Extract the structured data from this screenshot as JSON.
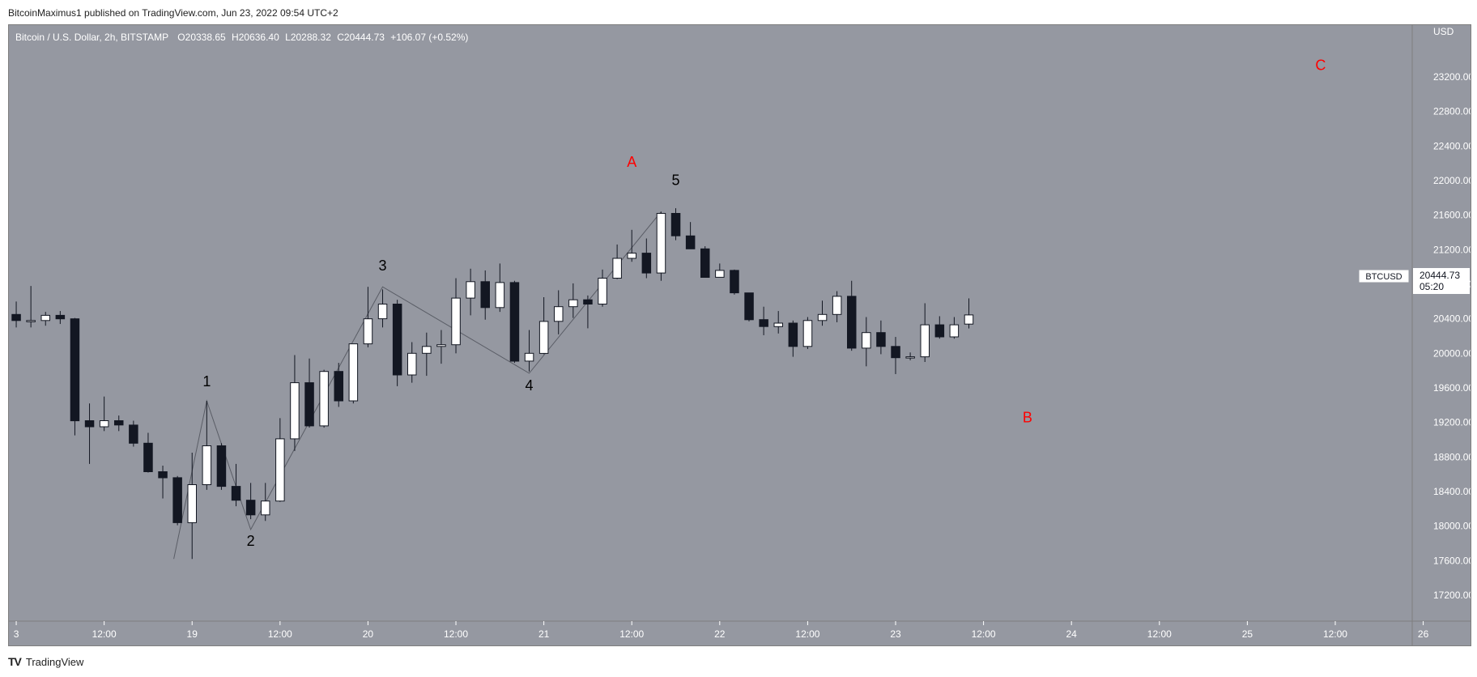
{
  "header": {
    "publisher_line": "BitcoinMaximus1 published on TradingView.com, Jun 23, 2022 09:54 UTC+2"
  },
  "footer": {
    "brand_icon": "TV",
    "brand_name": "TradingView"
  },
  "colors": {
    "background": "#9598a1",
    "candle_up": "#ffffff",
    "candle_down": "#131722",
    "wick": "#131722",
    "wave_line": "#5a5d66",
    "abc_label": "#ff0000",
    "axis_text": "#ffffff"
  },
  "chart_data": {
    "type": "candlestick",
    "title": "Bitcoin / U.S. Dollar, 2h, BITSTAMP",
    "ohlc_readout": {
      "o_label": "O",
      "o_value": "20338.65",
      "h_label": "H",
      "h_value": "20636.40",
      "l_label": "L",
      "l_value": "20288.32",
      "c_label": "C",
      "c_value": "20444.73",
      "change": "+106.07 (+0.52%)"
    },
    "y_axis": {
      "unit": "USD",
      "ylim": [
        16900,
        23800
      ],
      "ticks": [
        23200,
        22800,
        22400,
        22000,
        21600,
        21200,
        20800,
        20400,
        20000,
        19600,
        19200,
        18800,
        18400,
        18000,
        17600,
        17200
      ],
      "tick_labels": [
        "23200.00",
        "22800.00",
        "22400.00",
        "22000.00",
        "21600.00",
        "21200.00",
        "20800.00",
        "20400.00",
        "20000.00",
        "19600.00",
        "19200.00",
        "18800.00",
        "18400.00",
        "18000.00",
        "17600.00",
        "17200.00"
      ]
    },
    "x_axis": {
      "unit": "hours since Jun 18 00:00",
      "xlim": [
        23,
        214.5
      ],
      "ticks": [
        {
          "t": 24,
          "label": "3"
        },
        {
          "t": 36,
          "label": "12:00"
        },
        {
          "t": 48,
          "label": "19"
        },
        {
          "t": 60,
          "label": "12:00"
        },
        {
          "t": 72,
          "label": "20"
        },
        {
          "t": 84,
          "label": "12:00"
        },
        {
          "t": 96,
          "label": "21"
        },
        {
          "t": 108,
          "label": "12:00"
        },
        {
          "t": 120,
          "label": "22"
        },
        {
          "t": 132,
          "label": "12:00"
        },
        {
          "t": 144,
          "label": "23"
        },
        {
          "t": 156,
          "label": "12:00"
        },
        {
          "t": 168,
          "label": "24"
        },
        {
          "t": 180,
          "label": "12:00"
        },
        {
          "t": 192,
          "label": "25"
        },
        {
          "t": 204,
          "label": "12:00"
        },
        {
          "t": 216,
          "label": "26"
        }
      ]
    },
    "candles": [
      {
        "t": 24,
        "o": 20450,
        "h": 20600,
        "l": 20300,
        "c": 20380
      },
      {
        "t": 26,
        "o": 20380,
        "h": 20780,
        "l": 20300,
        "c": 20380
      },
      {
        "t": 28,
        "o": 20380,
        "h": 20480,
        "l": 20320,
        "c": 20440
      },
      {
        "t": 30,
        "o": 20440,
        "h": 20490,
        "l": 20340,
        "c": 20400
      },
      {
        "t": 32,
        "o": 20400,
        "h": 20410,
        "l": 19050,
        "c": 19220
      },
      {
        "t": 34,
        "o": 19220,
        "h": 19420,
        "l": 18720,
        "c": 19150
      },
      {
        "t": 36,
        "o": 19150,
        "h": 19500,
        "l": 19100,
        "c": 19220
      },
      {
        "t": 38,
        "o": 19220,
        "h": 19280,
        "l": 19100,
        "c": 19170
      },
      {
        "t": 40,
        "o": 19170,
        "h": 19220,
        "l": 18920,
        "c": 18960
      },
      {
        "t": 42,
        "o": 18960,
        "h": 19080,
        "l": 18620,
        "c": 18630
      },
      {
        "t": 44,
        "o": 18630,
        "h": 18700,
        "l": 18320,
        "c": 18560
      },
      {
        "t": 46,
        "o": 18560,
        "h": 18580,
        "l": 18010,
        "c": 18040
      },
      {
        "t": 48,
        "o": 18040,
        "h": 18850,
        "l": 17620,
        "c": 18480
      },
      {
        "t": 50,
        "o": 18480,
        "h": 19450,
        "l": 18420,
        "c": 18930
      },
      {
        "t": 52,
        "o": 18930,
        "h": 18960,
        "l": 18420,
        "c": 18460
      },
      {
        "t": 54,
        "o": 18460,
        "h": 18720,
        "l": 18230,
        "c": 18300
      },
      {
        "t": 56,
        "o": 18300,
        "h": 18500,
        "l": 18080,
        "c": 18130
      },
      {
        "t": 58,
        "o": 18130,
        "h": 18500,
        "l": 18060,
        "c": 18290
      },
      {
        "t": 60,
        "o": 18290,
        "h": 19250,
        "l": 18280,
        "c": 19010
      },
      {
        "t": 62,
        "o": 19010,
        "h": 19980,
        "l": 18870,
        "c": 19660
      },
      {
        "t": 64,
        "o": 19660,
        "h": 19940,
        "l": 19140,
        "c": 19160
      },
      {
        "t": 66,
        "o": 19160,
        "h": 19810,
        "l": 19140,
        "c": 19790
      },
      {
        "t": 68,
        "o": 19790,
        "h": 19890,
        "l": 19380,
        "c": 19450
      },
      {
        "t": 70,
        "o": 19450,
        "h": 20110,
        "l": 19420,
        "c": 20110
      },
      {
        "t": 72,
        "o": 20110,
        "h": 20770,
        "l": 20070,
        "c": 20400
      },
      {
        "t": 74,
        "o": 20400,
        "h": 20740,
        "l": 20300,
        "c": 20570
      },
      {
        "t": 76,
        "o": 20570,
        "h": 20620,
        "l": 19620,
        "c": 19750
      },
      {
        "t": 78,
        "o": 19750,
        "h": 20130,
        "l": 19660,
        "c": 20000
      },
      {
        "t": 80,
        "o": 20000,
        "h": 20240,
        "l": 19740,
        "c": 20080
      },
      {
        "t": 82,
        "o": 20080,
        "h": 20270,
        "l": 19880,
        "c": 20100
      },
      {
        "t": 84,
        "o": 20100,
        "h": 20870,
        "l": 20000,
        "c": 20640
      },
      {
        "t": 86,
        "o": 20640,
        "h": 20980,
        "l": 20440,
        "c": 20830
      },
      {
        "t": 88,
        "o": 20830,
        "h": 20960,
        "l": 20390,
        "c": 20530
      },
      {
        "t": 90,
        "o": 20530,
        "h": 21040,
        "l": 20480,
        "c": 20820
      },
      {
        "t": 92,
        "o": 20820,
        "h": 20840,
        "l": 19890,
        "c": 19910
      },
      {
        "t": 94,
        "o": 19910,
        "h": 20270,
        "l": 19790,
        "c": 20000
      },
      {
        "t": 96,
        "o": 20000,
        "h": 20650,
        "l": 19990,
        "c": 20370
      },
      {
        "t": 98,
        "o": 20370,
        "h": 20730,
        "l": 20220,
        "c": 20540
      },
      {
        "t": 100,
        "o": 20540,
        "h": 20810,
        "l": 20410,
        "c": 20620
      },
      {
        "t": 102,
        "o": 20620,
        "h": 20670,
        "l": 20290,
        "c": 20570
      },
      {
        "t": 104,
        "o": 20570,
        "h": 20970,
        "l": 20540,
        "c": 20870
      },
      {
        "t": 106,
        "o": 20870,
        "h": 21260,
        "l": 20860,
        "c": 21100
      },
      {
        "t": 108,
        "o": 21100,
        "h": 21430,
        "l": 21060,
        "c": 21160
      },
      {
        "t": 110,
        "o": 21160,
        "h": 21330,
        "l": 20870,
        "c": 20930
      },
      {
        "t": 112,
        "o": 20930,
        "h": 21640,
        "l": 20840,
        "c": 21620
      },
      {
        "t": 114,
        "o": 21620,
        "h": 21680,
        "l": 21310,
        "c": 21360
      },
      {
        "t": 116,
        "o": 21360,
        "h": 21520,
        "l": 21210,
        "c": 21210
      },
      {
        "t": 118,
        "o": 21210,
        "h": 21240,
        "l": 20880,
        "c": 20880
      },
      {
        "t": 120,
        "o": 20880,
        "h": 21040,
        "l": 20880,
        "c": 20960
      },
      {
        "t": 122,
        "o": 20960,
        "h": 20970,
        "l": 20680,
        "c": 20700
      },
      {
        "t": 124,
        "o": 20700,
        "h": 20700,
        "l": 20370,
        "c": 20390
      },
      {
        "t": 126,
        "o": 20390,
        "h": 20540,
        "l": 20210,
        "c": 20310
      },
      {
        "t": 128,
        "o": 20310,
        "h": 20490,
        "l": 20230,
        "c": 20350
      },
      {
        "t": 130,
        "o": 20350,
        "h": 20380,
        "l": 19960,
        "c": 20080
      },
      {
        "t": 132,
        "o": 20080,
        "h": 20420,
        "l": 20050,
        "c": 20380
      },
      {
        "t": 134,
        "o": 20380,
        "h": 20610,
        "l": 20320,
        "c": 20450
      },
      {
        "t": 136,
        "o": 20450,
        "h": 20720,
        "l": 20360,
        "c": 20660
      },
      {
        "t": 138,
        "o": 20660,
        "h": 20840,
        "l": 20030,
        "c": 20060
      },
      {
        "t": 140,
        "o": 20060,
        "h": 20420,
        "l": 19850,
        "c": 20240
      },
      {
        "t": 142,
        "o": 20240,
        "h": 20380,
        "l": 19990,
        "c": 20080
      },
      {
        "t": 144,
        "o": 20080,
        "h": 20190,
        "l": 19760,
        "c": 19950
      },
      {
        "t": 146,
        "o": 19950,
        "h": 20010,
        "l": 19920,
        "c": 19960
      },
      {
        "t": 148,
        "o": 19960,
        "h": 20580,
        "l": 19900,
        "c": 20330
      },
      {
        "t": 150,
        "o": 20330,
        "h": 20430,
        "l": 20170,
        "c": 20190
      },
      {
        "t": 152,
        "o": 20190,
        "h": 20420,
        "l": 20170,
        "c": 20330
      },
      {
        "t": 154,
        "o": 20338.65,
        "h": 20636.4,
        "l": 20288.32,
        "c": 20444.73
      }
    ],
    "elliott_wave": {
      "path": [
        {
          "t": 45.5,
          "p": 17620
        },
        {
          "t": 50,
          "p": 19450
        },
        {
          "t": 56,
          "p": 17960
        },
        {
          "t": 74,
          "p": 20770
        },
        {
          "t": 94,
          "p": 19770
        },
        {
          "t": 112,
          "p": 21640
        }
      ],
      "labels": [
        {
          "text": "1",
          "t": 50,
          "p": 19620
        },
        {
          "text": "2",
          "t": 56,
          "p": 17770
        },
        {
          "text": "3",
          "t": 74,
          "p": 20960
        },
        {
          "text": "4",
          "t": 94,
          "p": 19570
        },
        {
          "text": "5",
          "t": 114,
          "p": 21950
        }
      ]
    },
    "abc_labels": [
      {
        "text": "A",
        "t": 108,
        "p": 22160
      },
      {
        "text": "B",
        "t": 162,
        "p": 19200
      },
      {
        "text": "C",
        "t": 202,
        "p": 23280
      }
    ],
    "price_tag": {
      "symbol": "BTCUSD",
      "price": "20444.73",
      "countdown": "05:20"
    }
  }
}
